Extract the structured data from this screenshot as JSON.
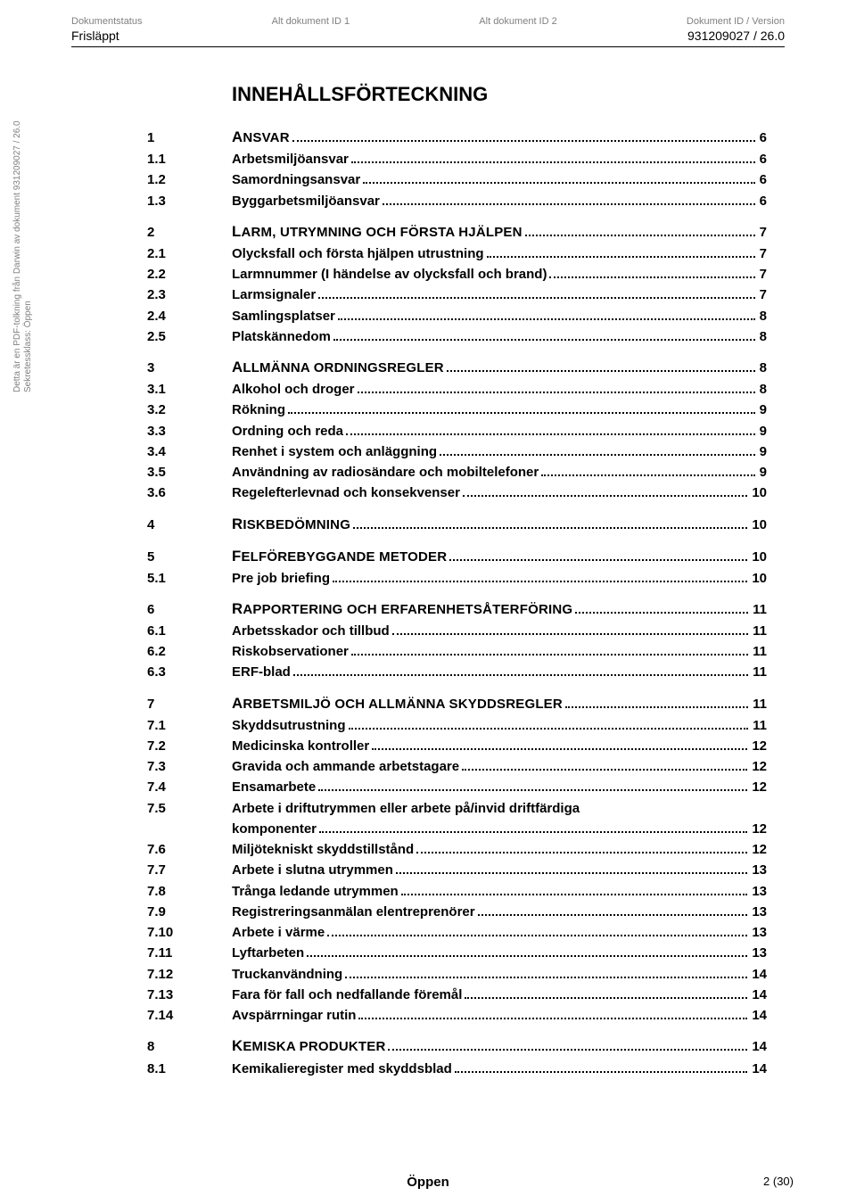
{
  "header": {
    "cols": [
      {
        "label": "Dokumentstatus",
        "value": "Frisläppt"
      },
      {
        "label": "Alt dokument ID 1",
        "value": ""
      },
      {
        "label": "Alt dokument ID 2",
        "value": ""
      },
      {
        "label": "Dokument ID / Version",
        "value": "931209027 / 26.0"
      }
    ]
  },
  "sideText": {
    "line1": "Detta är en PDF-tolkning från Darwin av dokument 931209027 / 26.0",
    "line2": "Sekretessklass: Öppen"
  },
  "title": "INNEHÅLLSFÖRTECKNING",
  "toc": [
    {
      "lvl": 1,
      "num": "1",
      "label": "Ansvar",
      "page": "6"
    },
    {
      "lvl": 2,
      "num": "1.1",
      "label": "Arbetsmiljöansvar",
      "page": "6"
    },
    {
      "lvl": 2,
      "num": "1.2",
      "label": "Samordningsansvar",
      "page": "6"
    },
    {
      "lvl": 2,
      "num": "1.3",
      "label": "Byggarbetsmiljöansvar",
      "page": "6"
    },
    {
      "gap": true
    },
    {
      "lvl": 1,
      "num": "2",
      "label": "Larm, utrymning och första hjälpen",
      "page": "7"
    },
    {
      "lvl": 2,
      "num": "2.1",
      "label": "Olycksfall och första hjälpen utrustning",
      "page": "7"
    },
    {
      "lvl": 2,
      "num": "2.2",
      "label": "Larmnummer (I händelse av olycksfall och brand)",
      "page": "7"
    },
    {
      "lvl": 2,
      "num": "2.3",
      "label": "Larmsignaler",
      "page": "7"
    },
    {
      "lvl": 2,
      "num": "2.4",
      "label": "Samlingsplatser",
      "page": "8"
    },
    {
      "lvl": 2,
      "num": "2.5",
      "label": "Platskännedom",
      "page": "8"
    },
    {
      "gap": true
    },
    {
      "lvl": 1,
      "num": "3",
      "label": "Allmänna ordningsregler",
      "page": "8"
    },
    {
      "lvl": 2,
      "num": "3.1",
      "label": "Alkohol och droger",
      "page": "8"
    },
    {
      "lvl": 2,
      "num": "3.2",
      "label": "Rökning",
      "page": "9"
    },
    {
      "lvl": 2,
      "num": "3.3",
      "label": "Ordning och reda",
      "page": "9"
    },
    {
      "lvl": 2,
      "num": "3.4",
      "label": "Renhet i system och anläggning",
      "page": "9"
    },
    {
      "lvl": 2,
      "num": "3.5",
      "label": "Användning av radiosändare och mobiltelefoner",
      "page": "9"
    },
    {
      "lvl": 2,
      "num": "3.6",
      "label": "Regelefterlevnad och konsekvenser",
      "page": "10"
    },
    {
      "gap": true
    },
    {
      "lvl": 1,
      "num": "4",
      "label": "Riskbedömning",
      "page": "10"
    },
    {
      "gap": true
    },
    {
      "lvl": 1,
      "num": "5",
      "label": "Felförebyggande metoder",
      "page": "10"
    },
    {
      "lvl": 2,
      "num": "5.1",
      "label": "Pre job briefing",
      "page": "10"
    },
    {
      "gap": true
    },
    {
      "lvl": 1,
      "num": "6",
      "label": "Rapportering och erfarenhetsåterföring",
      "page": "11"
    },
    {
      "lvl": 2,
      "num": "6.1",
      "label": "Arbetsskador och tillbud",
      "page": "11"
    },
    {
      "lvl": 2,
      "num": "6.2",
      "label": "Riskobservationer",
      "page": "11"
    },
    {
      "lvl": 2,
      "num": "6.3",
      "label": "ERF-blad",
      "page": "11"
    },
    {
      "gap": true
    },
    {
      "lvl": 1,
      "num": "7",
      "label": "Arbetsmiljö och allmänna skyddsregler",
      "page": "11"
    },
    {
      "lvl": 2,
      "num": "7.1",
      "label": "Skyddsutrustning",
      "page": "11"
    },
    {
      "lvl": 2,
      "num": "7.2",
      "label": "Medicinska kontroller",
      "page": "12"
    },
    {
      "lvl": 2,
      "num": "7.3",
      "label": "Gravida och ammande arbetstagare",
      "page": "12"
    },
    {
      "lvl": 2,
      "num": "7.4",
      "label": "Ensamarbete",
      "page": "12"
    },
    {
      "lvl": 2,
      "num": "7.5",
      "label": "Arbete i driftutrymmen eller arbete på/invid driftfärdiga",
      "label2": "komponenter",
      "page": "12",
      "wrap": true
    },
    {
      "lvl": 2,
      "num": "7.6",
      "label": "Miljötekniskt skyddstillstånd",
      "page": "12"
    },
    {
      "lvl": 2,
      "num": "7.7",
      "label": "Arbete i slutna utrymmen",
      "page": "13"
    },
    {
      "lvl": 2,
      "num": "7.8",
      "label": "Trånga ledande utrymmen",
      "page": "13"
    },
    {
      "lvl": 2,
      "num": "7.9",
      "label": "Registreringsanmälan elentreprenörer",
      "page": "13"
    },
    {
      "lvl": 2,
      "num": "7.10",
      "label": "Arbete i värme",
      "page": "13"
    },
    {
      "lvl": 2,
      "num": "7.11",
      "label": "Lyftarbeten",
      "page": "13"
    },
    {
      "lvl": 2,
      "num": "7.12",
      "label": "Truckanvändning",
      "page": "14"
    },
    {
      "lvl": 2,
      "num": "7.13",
      "label": "Fara för fall och nedfallande föremål",
      "page": "14"
    },
    {
      "lvl": 2,
      "num": "7.14",
      "label": "Avspärrningar rutin",
      "page": "14"
    },
    {
      "gap": true
    },
    {
      "lvl": 1,
      "num": "8",
      "label": "Kemiska produkter",
      "page": "14"
    },
    {
      "lvl": 2,
      "num": "8.1",
      "label": "Kemikalieregister med skyddsblad",
      "page": "14"
    }
  ],
  "footer": {
    "center": "Öppen",
    "page": "2 (30)"
  }
}
